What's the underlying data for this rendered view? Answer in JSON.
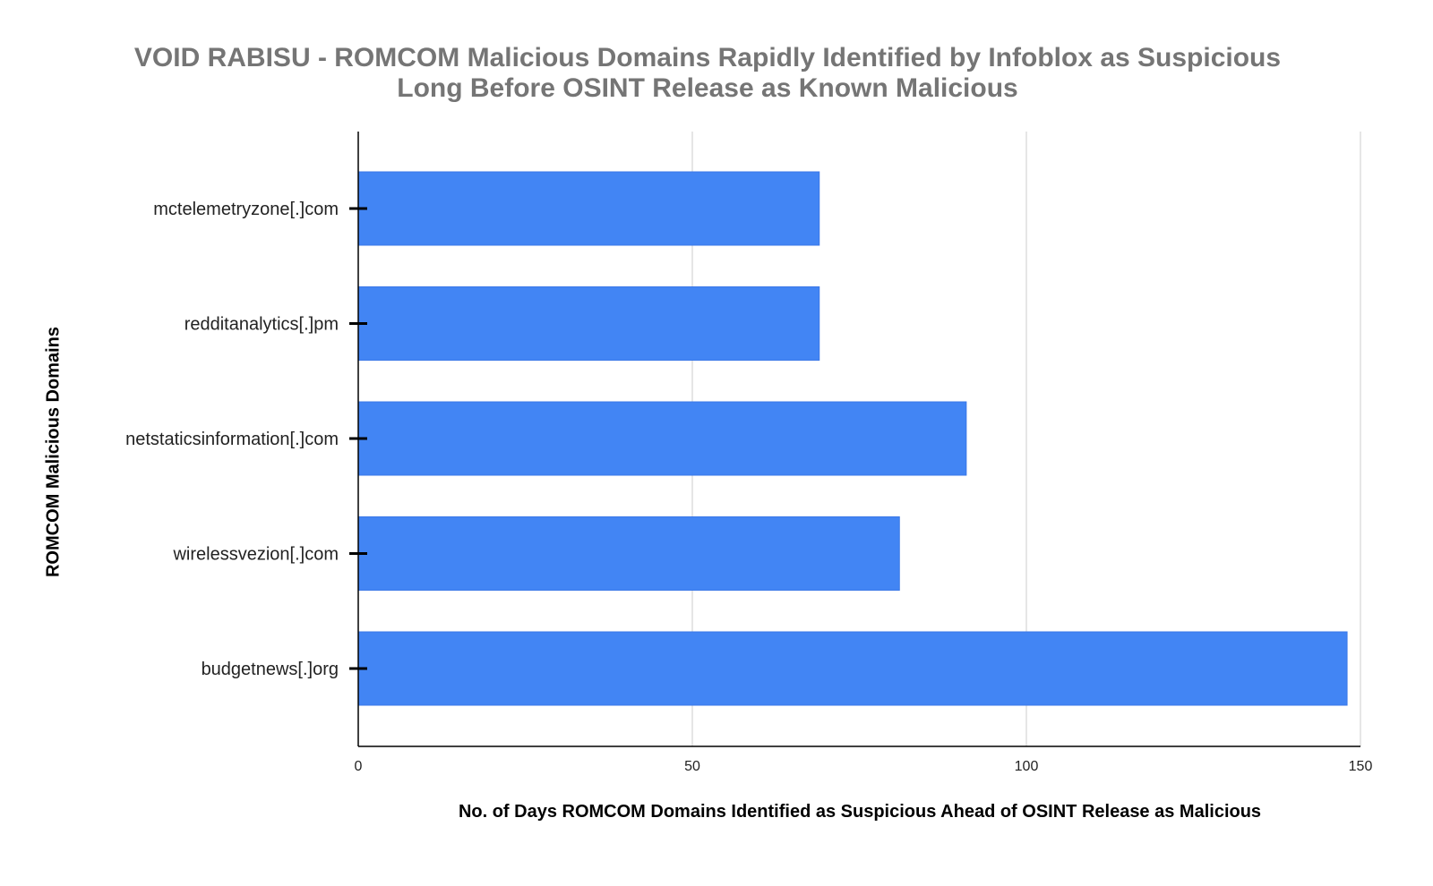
{
  "chart_data": {
    "type": "bar",
    "orientation": "horizontal",
    "title": [
      "VOID RABISU - ROMCOM Malicious Domains Rapidly Identified by Infoblox as Suspicious",
      "Long Before OSINT Release as Known Malicious"
    ],
    "xlabel": "No. of Days ROMCOM Domains Identified as Suspicious Ahead of OSINT Release as Malicious",
    "ylabel": "ROMCOM Malicious Domains",
    "categories": [
      "mctelemetryzone[.]com",
      "redditanalytics[.]pm",
      "netstaticsinformation[.]com",
      "wirelessvezion[.]com",
      "budgetnews[.]org"
    ],
    "values": [
      69,
      69,
      91,
      81,
      148
    ],
    "xlim": [
      0,
      150
    ],
    "xticks": [
      0,
      50,
      100,
      150
    ],
    "grid": true,
    "bar_color": "#4285f4"
  }
}
